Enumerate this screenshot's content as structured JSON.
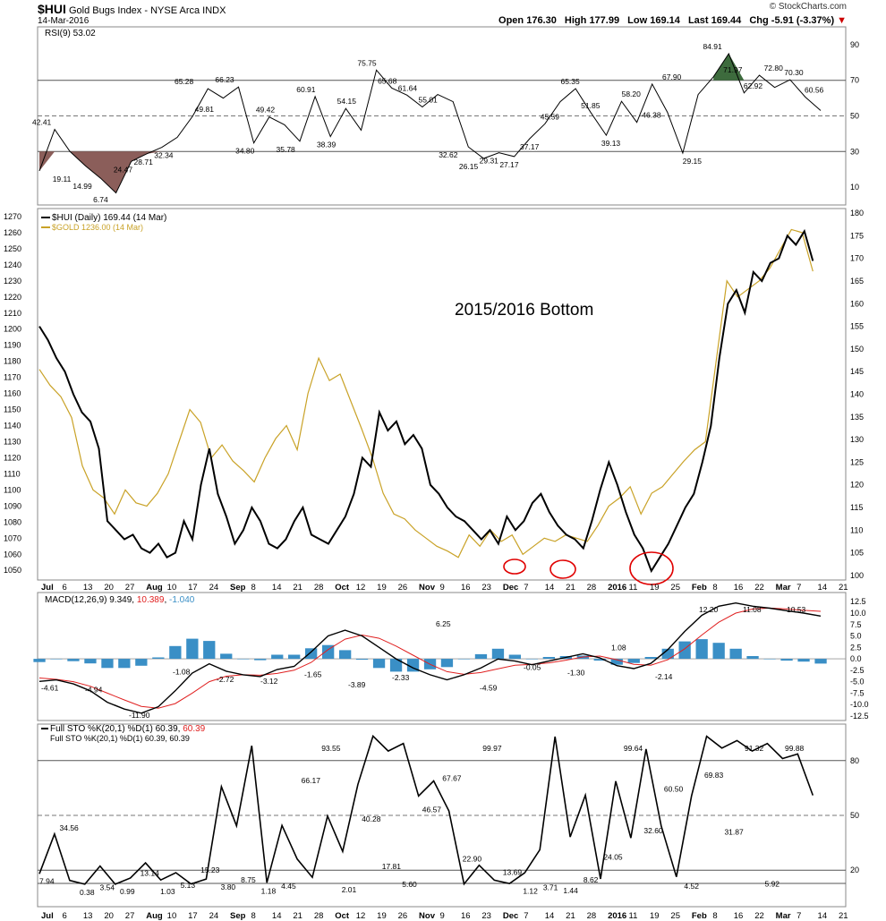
{
  "header": {
    "symbol": "$HUI",
    "name": "Gold Bugs Index - NYSE Arca INDX",
    "date": "14-Mar-2016",
    "source": "© StockCharts.com",
    "open_label": "Open",
    "open": "176.30",
    "high_label": "High",
    "high": "177.99",
    "low_label": "Low",
    "low": "169.14",
    "last_label": "Last",
    "last": "169.44",
    "chg_label": "Chg",
    "chg": "-5.91 (-3.37%)"
  },
  "colors": {
    "hui": "#000000",
    "gold": "#c9a227",
    "rsi_high_fill": "#3d6b3d",
    "rsi_low_fill": "#8b5e5a",
    "macd_signal": "#e02020",
    "histogram": "#3a8fc6",
    "circle": "#e00000",
    "grid": "#cccccc"
  },
  "chart_data": [
    {
      "type": "line",
      "title": "RSI(9) 53.02",
      "ylim": [
        0,
        100
      ],
      "yticks": [
        10,
        30,
        50,
        70,
        90
      ],
      "reference_lines": [
        30,
        50,
        70
      ],
      "series": [
        {
          "name": "RSI(9)",
          "values": [
            19.11,
            42.41,
            30,
            22,
            14.99,
            6.74,
            24.47,
            28.71,
            32.34,
            38,
            49.81,
            65.28,
            60,
            66.23,
            34.8,
            49.42,
            45,
            35.78,
            60.91,
            38.39,
            54.15,
            42,
            75.75,
            65.68,
            61.64,
            55.01,
            62,
            58,
            32.62,
            26.15,
            29.31,
            27.17,
            37.17,
            45.59,
            58,
            65.35,
            51.85,
            39.13,
            58.2,
            46.38,
            67.9,
            52,
            29.15,
            62,
            71.97,
            84.91,
            62.92,
            72.8,
            66,
            70.3,
            60.56,
            53.02
          ]
        }
      ],
      "annotations": [
        "42.41",
        "19.11",
        "14.99",
        "6.74",
        "24.47",
        "28.71",
        "32.34",
        "65.28",
        "49.81",
        "66.23",
        "34.80",
        "49.42",
        "35.78",
        "60.91",
        "38.39",
        "54.15",
        "75.75",
        "65.68",
        "61.64",
        "55.01",
        "32.62",
        "26.15",
        "29.31",
        "27.17",
        "37.17",
        "45.59",
        "65.35",
        "51.85",
        "39.13",
        "58.20",
        "46.38",
        "67.90",
        "29.15",
        "84.91",
        "71.97",
        "62.92",
        "72.80",
        "70.30",
        "60.56"
      ]
    },
    {
      "type": "line",
      "title": "$HUI (Daily) 169.44 (14 Mar)",
      "ylim": [
        99,
        181
      ],
      "yticks": [
        100,
        105,
        110,
        115,
        120,
        125,
        130,
        135,
        140,
        145,
        150,
        155,
        160,
        165,
        170,
        175,
        180
      ],
      "secondary_axis": {
        "name": "$GOLD 1236.00 (14 Mar)",
        "ylim": [
          1044,
          1275
        ],
        "yticks": [
          1050,
          1060,
          1070,
          1080,
          1090,
          1100,
          1110,
          1120,
          1130,
          1140,
          1150,
          1160,
          1170,
          1180,
          1190,
          1200,
          1210,
          1220,
          1230,
          1240,
          1250,
          1260,
          1270
        ]
      },
      "series": [
        {
          "name": "$HUI (Daily) 169.44 (14 Mar)",
          "values": [
            155,
            152,
            148,
            145,
            140,
            136,
            134,
            128,
            112,
            110,
            108,
            109,
            106,
            105,
            107,
            104,
            105,
            112,
            108,
            120,
            128,
            118,
            113,
            107,
            110,
            115,
            112,
            107,
            106,
            108,
            112,
            115,
            109,
            108,
            107,
            110,
            113,
            118,
            126,
            124,
            136,
            132,
            134,
            129,
            131,
            128,
            120,
            118,
            115,
            113,
            112,
            110,
            108,
            110,
            107,
            113,
            110,
            112,
            116,
            118,
            114,
            111,
            109,
            108,
            106,
            112,
            119,
            125,
            120,
            114,
            109,
            106,
            101,
            104,
            107,
            111,
            115,
            118,
            125,
            133,
            148,
            160,
            163,
            158,
            167,
            165,
            169,
            170,
            175,
            173,
            176,
            169.44
          ]
        },
        {
          "name": "$GOLD 1236.00 (14 Mar)",
          "values": [
            1175,
            1165,
            1158,
            1145,
            1115,
            1100,
            1095,
            1085,
            1100,
            1092,
            1090,
            1098,
            1110,
            1130,
            1150,
            1142,
            1120,
            1128,
            1118,
            1112,
            1105,
            1120,
            1132,
            1140,
            1125,
            1160,
            1182,
            1168,
            1172,
            1155,
            1138,
            1120,
            1098,
            1085,
            1082,
            1075,
            1070,
            1065,
            1062,
            1058,
            1072,
            1065,
            1075,
            1068,
            1072,
            1060,
            1065,
            1070,
            1068,
            1072,
            1070,
            1068,
            1078,
            1090,
            1095,
            1102,
            1085,
            1098,
            1102,
            1110,
            1118,
            1125,
            1130,
            1180,
            1230,
            1220,
            1225,
            1230,
            1238,
            1250,
            1262,
            1260,
            1236
          ]
        }
      ],
      "annotations": [
        "2015/2016 Bottom"
      ],
      "highlights": [
        "Dec 7 low",
        "Dec 18 low",
        "Jan 19 low"
      ]
    },
    {
      "type": "line",
      "title": "MACD(12,26,9) 9.349, 10.389, -1.040",
      "title_parts": {
        "label": "MACD(12,26,9) ",
        "macd": "9.349",
        "sep1": ", ",
        "signal": "10.389",
        "sep2": ", ",
        "hist": "-1.040"
      },
      "ylim": [
        -13.5,
        14.5
      ],
      "yticks": [
        -12.5,
        -10,
        -7.5,
        -5,
        -2.5,
        0,
        2.5,
        5,
        7.5,
        10,
        12.5
      ],
      "ytick_labels": [
        "-12.5",
        "-10.0",
        "-7.5",
        "-5.0",
        "-2.5",
        "0.0",
        "2.5",
        "5.0",
        "7.5",
        "10.0",
        "12.5"
      ],
      "series": [
        {
          "name": "MACD",
          "values": [
            -4.94,
            -4.61,
            -5.5,
            -7,
            -9.5,
            -11,
            -11.9,
            -10.5,
            -7,
            -3.12,
            -1.08,
            -2.72,
            -3.5,
            -3.89,
            -2.33,
            -1.65,
            1.5,
            5,
            6.25,
            5,
            2.5,
            0,
            -2,
            -3.5,
            -4.59,
            -3.5,
            -2,
            -0.05,
            -0.5,
            -1.3,
            -0.5,
            0.3,
            1.08,
            0.2,
            -1.5,
            -2.14,
            -1,
            2,
            6,
            9.5,
            11.5,
            12.2,
            11.5,
            11.08,
            10.53,
            10,
            9.349
          ]
        },
        {
          "name": "Signal",
          "values": [
            -4.2,
            -4.5,
            -5,
            -6,
            -7.5,
            -9,
            -10.4,
            -10.8,
            -9.8,
            -7.5,
            -5,
            -3.8,
            -3.5,
            -3.6,
            -3.2,
            -2.5,
            -0.8,
            2,
            4.3,
            5.2,
            4.5,
            2.8,
            0.8,
            -1.2,
            -2.8,
            -3.4,
            -3,
            -2.2,
            -1.4,
            -1.2,
            -0.9,
            -0.3,
            0.4,
            0.6,
            -0.2,
            -1.2,
            -1.4,
            -0.2,
            2.2,
            5.2,
            8,
            10,
            10.9,
            11.1,
            10.9,
            10.6,
            10.389
          ]
        },
        {
          "name": "Histogram",
          "values": [
            -0.7,
            -0.1,
            -0.5,
            -1,
            -2,
            -2,
            -1.5,
            0.3,
            2.8,
            4.4,
            3.9,
            1.1,
            0,
            -0.3,
            0.9,
            0.9,
            2.3,
            3,
            1.9,
            -0.2,
            -2,
            -2.8,
            -2.8,
            -2.3,
            -1.8,
            -0.1,
            1,
            2.2,
            0.9,
            -0.1,
            0.4,
            0.6,
            0.7,
            -0.4,
            -1.3,
            -0.9,
            0.4,
            2.2,
            3.8,
            4.3,
            3.5,
            2.2,
            0.6,
            0,
            -0.4,
            -0.6,
            -1.04
          ]
        }
      ],
      "annotations": [
        "-4.61",
        "-4.94",
        "-11.90",
        "-1.08",
        "-2.72",
        "-3.12",
        "-1.65",
        "-3.89",
        "-2.33",
        "6.25",
        "-4.59",
        "-0.05",
        "-1.30",
        "1.08",
        "-2.14",
        "12.20",
        "11.08",
        "10.53"
      ]
    },
    {
      "type": "line",
      "title": "Full STO %K(20,1) %D(1) 60.39, 60.39",
      "title_parts": {
        "label": "Full STO %K(20,1) %D(1) ",
        "k": "60.39",
        "sep": ", ",
        "d": "60.39"
      },
      "subtitle": "Full STO %K(20,1) %D(1) 60.39, 60.39",
      "ylim": [
        0,
        100
      ],
      "yticks": [
        20,
        50,
        80
      ],
      "reference_lines": [
        20,
        50,
        80
      ],
      "series": [
        {
          "name": "%K",
          "values": [
            7.94,
            34.56,
            3.54,
            0.99,
            13.14,
            1.03,
            5.13,
            15.23,
            3.8,
            8.75,
            1.18,
            4.45,
            66.17,
            40,
            93.55,
            2.01,
            40.28,
            17.81,
            5.6,
            46.57,
            22.9,
            67.67,
            99.97,
            90,
            95,
            60,
            70,
            50,
            1.12,
            13.69,
            3.71,
            1.44,
            8.62,
            24.05,
            99.64,
            32.6,
            60.5,
            4.52,
            69.83,
            31.87,
            91.32,
            40,
            5.92,
            60,
            99.88,
            92,
            97,
            90,
            95,
            85,
            88,
            60.39
          ]
        }
      ],
      "annotations": [
        "7.94",
        "34.56",
        "0.38",
        "3.54",
        "0.99",
        "13.14",
        "1.03",
        "5.13",
        "15.23",
        "3.80",
        "8.75",
        "1.18",
        "4.45",
        "66.17",
        "93.55",
        "2.01",
        "40.28",
        "17.81",
        "5.60",
        "46.57",
        "67.67",
        "22.90",
        "99.97",
        "13.69",
        "1.12",
        "3.71",
        "1.44",
        "8.62",
        "24.05",
        "99.64",
        "32.60",
        "60.50",
        "4.52",
        "69.83",
        "31.87",
        "91.32",
        "5.92",
        "99.88"
      ]
    }
  ],
  "x_axis_labels": [
    "Jul",
    "6",
    "13",
    "20",
    "27",
    "Aug",
    "10",
    "17",
    "24",
    "Sep",
    "8",
    "14",
    "21",
    "28",
    "Oct",
    "12",
    "19",
    "26",
    "Nov",
    "9",
    "16",
    "23",
    "Dec",
    "7",
    "14",
    "21",
    "28",
    "2016",
    "11",
    "19",
    "25",
    "Feb",
    "8",
    "16",
    "22",
    "Mar",
    "7",
    "14",
    "21"
  ],
  "x_axis_bold": [
    "Jul",
    "Aug",
    "Sep",
    "Oct",
    "Nov",
    "Dec",
    "2016",
    "Feb",
    "Mar"
  ],
  "price_annotation": "2015/2016 Bottom"
}
